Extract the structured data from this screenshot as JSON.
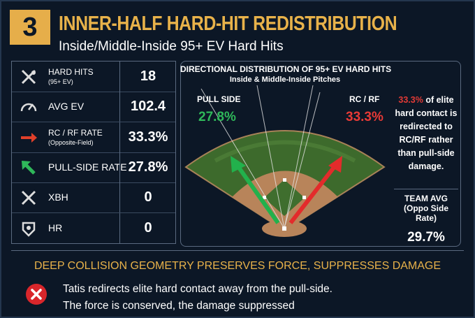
{
  "header": {
    "number": "3",
    "title": "INNER-HALF HARD-HIT REDISTRIBUTION",
    "subtitle": "Inside/Middle-Inside 95+ EV Hard Hits"
  },
  "stats": [
    {
      "label": "HARD HITS",
      "sublabel": "(95+ EV)",
      "value": "18"
    },
    {
      "label": "AVG EV",
      "value": "102.4"
    },
    {
      "label": "RC / RF RATE",
      "sublabel": "(Opposite-Field)",
      "value": "33.3%"
    },
    {
      "label": "PULL-SIDE RATE",
      "value": "27.8%"
    },
    {
      "label": "XBH",
      "value": "0"
    },
    {
      "label": "HR",
      "value": "0"
    }
  ],
  "diagram": {
    "title": "DIRECTIONAL DISTRIBUTION OF 95+ EV HARD HITS",
    "subtitle": "Inside & Middle-Inside Pitches",
    "pull_label": "PULL SIDE",
    "pull_value": "27.8%",
    "rc_label": "RC / RF",
    "rc_value": "33.3%"
  },
  "note": {
    "highlight": "33.3%",
    "text": "of elite hard contact is redirected to RC/RF rather than pull-side damage."
  },
  "team": {
    "label": "TEAM AVG",
    "sublabel": "(Oppo Side Rate)",
    "value": "29.7%"
  },
  "footer": {
    "headline": "DEEP COLLISION GEOMETRY PRESERVES FORCE, SUPPRESSES DAMAGE",
    "lines": [
      "Tatis redirects elite hard contact away from the  pull-side.",
      "The force is conserved, the damage suppressed"
    ]
  }
}
